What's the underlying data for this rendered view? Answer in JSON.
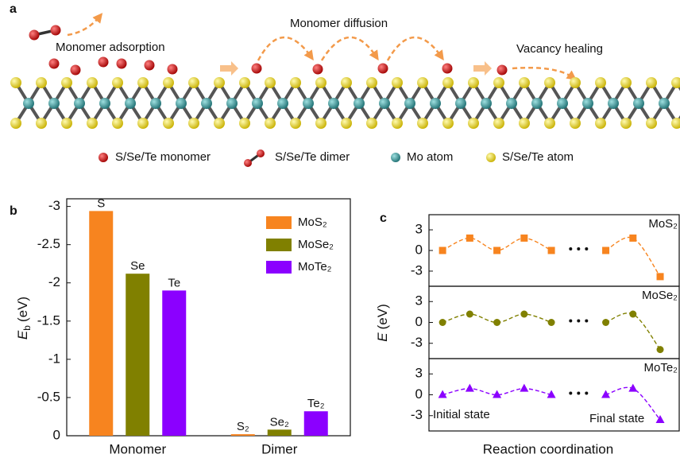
{
  "panel_a": {
    "label": "a",
    "steps": [
      "Monomer adsorption",
      "Monomer diffusion",
      "Vacancy healing"
    ],
    "legend": [
      "S/Se/Te monomer",
      "S/Se/Te dimer",
      "Mo atom",
      "S/Se/Te atom"
    ]
  },
  "chart_data": [
    {
      "type": "bar",
      "panel": "b",
      "categories": [
        "Monomer",
        "Dimer"
      ],
      "series": [
        {
          "name": "MoS₂",
          "color": "#f7841f",
          "values": [
            -2.94,
            -0.02
          ],
          "bar_labels": [
            "S",
            "S₂"
          ]
        },
        {
          "name": "MoSe₂",
          "color": "#808000",
          "values": [
            -2.12,
            -0.08
          ],
          "bar_labels": [
            "Se",
            "Se₂"
          ]
        },
        {
          "name": "MoTe₂",
          "color": "#8b00ff",
          "values": [
            -1.9,
            -0.32
          ],
          "bar_labels": [
            "Te",
            "Te₂"
          ]
        }
      ],
      "ylim": [
        0,
        -3.1
      ],
      "yticks": [
        -3,
        -2.5,
        -2,
        -1.5,
        -1,
        -0.5,
        0
      ],
      "ylabel": {
        "symbol": "E",
        "subscript": "b",
        "unit": "(eV)"
      },
      "legend": "upper right"
    },
    {
      "type": "line",
      "panel": "c",
      "x": [
        0,
        1,
        2,
        3,
        4,
        6,
        7,
        8
      ],
      "xlim": [
        -0.5,
        8.7
      ],
      "xlabel": "Reaction coordination",
      "ylabel": {
        "symbol": "E",
        "unit": "(eV)"
      },
      "annotations": [
        "Initial state",
        "Final state"
      ],
      "series": [
        {
          "name": "MoS₂",
          "color": "#f7841f",
          "marker": "square",
          "values": [
            0,
            1.8,
            0,
            1.8,
            0,
            0,
            1.8,
            -3.8
          ],
          "ylim": [
            -5.2,
            5.2
          ],
          "yticks": [
            -3,
            0,
            3
          ]
        },
        {
          "name": "MoSe₂",
          "color": "#808000",
          "marker": "circle",
          "values": [
            0,
            1.2,
            0,
            1.2,
            0,
            0,
            1.2,
            -3.9
          ],
          "ylim": [
            -5.2,
            5.2
          ],
          "yticks": [
            -3,
            0,
            3
          ]
        },
        {
          "name": "MoTe₂",
          "color": "#8b00ff",
          "marker": "triangle",
          "values": [
            0,
            0.9,
            0,
            0.9,
            0,
            0,
            0.9,
            -3.6
          ],
          "ylim": [
            -5.2,
            5.2
          ],
          "yticks": [
            -3,
            0,
            3
          ]
        }
      ]
    }
  ]
}
